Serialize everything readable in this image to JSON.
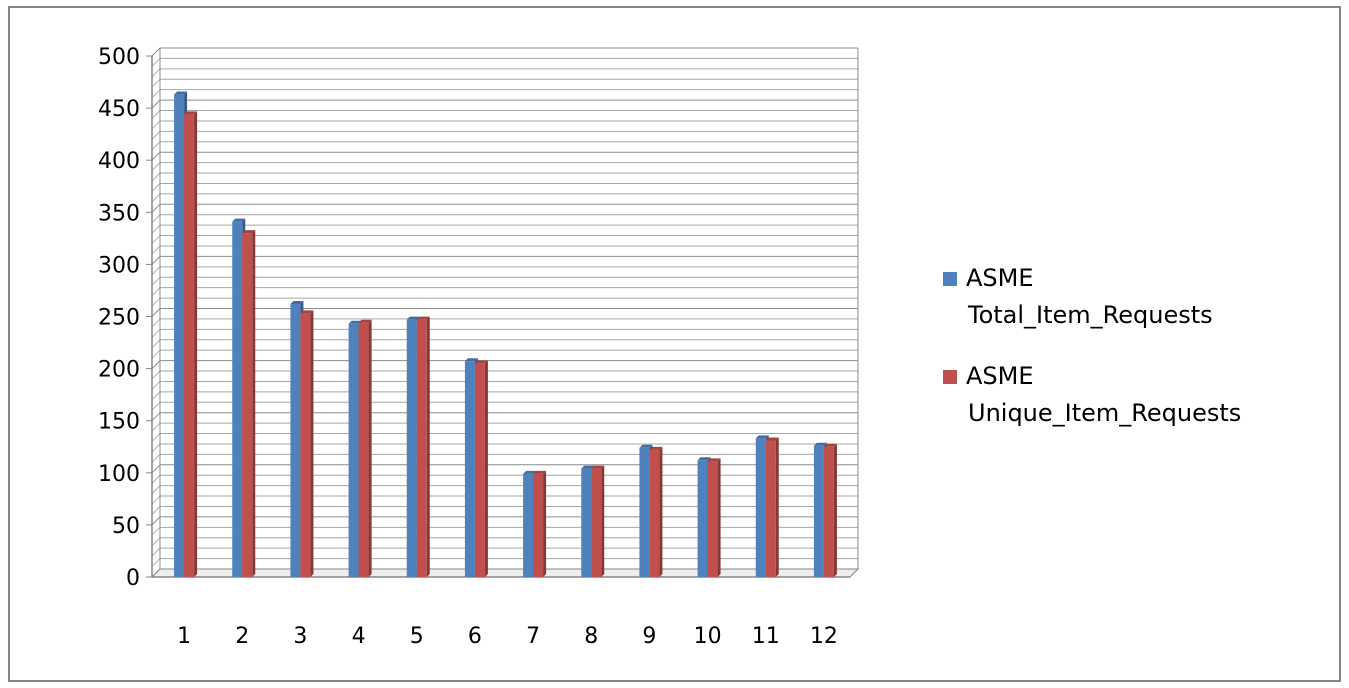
{
  "chart_data": {
    "type": "bar",
    "title": "",
    "xlabel": "",
    "ylabel": "",
    "categories": [
      "1",
      "2",
      "3",
      "4",
      "5",
      "6",
      "7",
      "8",
      "9",
      "10",
      "11",
      "12"
    ],
    "series": [
      {
        "name": "ASME Total_Item_Requests",
        "name_lines": [
          "ASME",
          "Total_Item_Requests"
        ],
        "color": "#4F81BD",
        "values": [
          463,
          341,
          262,
          243,
          247,
          207,
          99,
          104,
          124,
          112,
          133,
          126
        ]
      },
      {
        "name": "ASME Unique_Item_Requests",
        "name_lines": [
          "ASME",
          "Unique_Item_Requests"
        ],
        "color": "#C0504D",
        "values": [
          444,
          330,
          253,
          244,
          247,
          205,
          99,
          104,
          122,
          111,
          131,
          125
        ]
      }
    ],
    "ylim": [
      0,
      500
    ],
    "y_ticks": [
      "0",
      "50",
      "100",
      "150",
      "200",
      "250",
      "300",
      "350",
      "400",
      "450",
      "500"
    ],
    "grid": true,
    "minor_grid_step": 10,
    "three_d": true,
    "legend": "right"
  }
}
